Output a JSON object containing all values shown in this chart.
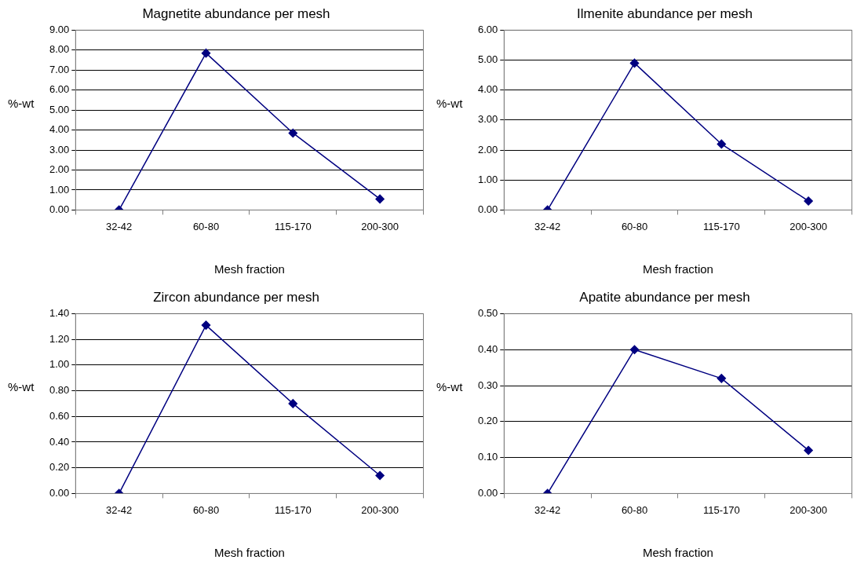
{
  "chart_data": [
    {
      "type": "line",
      "title": "Magnetite abundance per mesh",
      "xlabel": "Mesh fraction",
      "ylabel": "%-wt",
      "categories": [
        "32-42",
        "60-80",
        "115-170",
        "200-300"
      ],
      "series": [
        {
          "color": "#000080",
          "values": [
            0,
            7.85,
            3.85,
            0.55
          ]
        }
      ],
      "ylim": [
        0,
        9
      ],
      "yticks": [
        {
          "value": 0,
          "label": "0.00"
        },
        {
          "value": 1,
          "label": "1.00"
        },
        {
          "value": 2,
          "label": "2.00"
        },
        {
          "value": 3,
          "label": "3.00"
        },
        {
          "value": 4,
          "label": "4.00"
        },
        {
          "value": 5,
          "label": "5.00"
        },
        {
          "value": 6,
          "label": "6.00"
        },
        {
          "value": 7,
          "label": "7.00"
        },
        {
          "value": 8,
          "label": "8.00"
        },
        {
          "value": 9,
          "label": "9.00"
        }
      ],
      "grid": "y",
      "legend": false,
      "marker": "diamond",
      "line_style": "solid"
    },
    {
      "type": "line",
      "title": "Ilmenite abundance per mesh",
      "xlabel": "Mesh fraction",
      "ylabel": "%-wt",
      "categories": [
        "32-42",
        "60-80",
        "115-170",
        "200-300"
      ],
      "series": [
        {
          "color": "#000080",
          "values": [
            0,
            4.9,
            2.2,
            0.3
          ]
        }
      ],
      "ylim": [
        0,
        6
      ],
      "yticks": [
        {
          "value": 0,
          "label": "0.00"
        },
        {
          "value": 1,
          "label": "1.00"
        },
        {
          "value": 2,
          "label": "2.00"
        },
        {
          "value": 3,
          "label": "3.00"
        },
        {
          "value": 4,
          "label": "4.00"
        },
        {
          "value": 5,
          "label": "5.00"
        },
        {
          "value": 6,
          "label": "6.00"
        }
      ],
      "grid": "y",
      "legend": false,
      "marker": "diamond",
      "line_style": "solid"
    },
    {
      "type": "line",
      "title": "Zircon abundance per mesh",
      "xlabel": "Mesh fraction",
      "ylabel": "%-wt",
      "categories": [
        "32-42",
        "60-80",
        "115-170",
        "200-300"
      ],
      "series": [
        {
          "color": "#000080",
          "values": [
            0,
            1.31,
            0.7,
            0.14
          ]
        }
      ],
      "ylim": [
        0,
        1.4
      ],
      "yticks": [
        {
          "value": 0,
          "label": "0.00"
        },
        {
          "value": 0.2,
          "label": "0.20"
        },
        {
          "value": 0.4,
          "label": "0.40"
        },
        {
          "value": 0.6,
          "label": "0.60"
        },
        {
          "value": 0.8,
          "label": "0.80"
        },
        {
          "value": 1,
          "label": "1.00"
        },
        {
          "value": 1.2,
          "label": "1.20"
        },
        {
          "value": 1.4,
          "label": "1.40"
        }
      ],
      "grid": "y",
      "legend": false,
      "marker": "diamond",
      "line_style": "solid"
    },
    {
      "type": "line",
      "title": "Apatite abundance per mesh",
      "xlabel": "Mesh fraction",
      "ylabel": "%-wt",
      "categories": [
        "32-42",
        "60-80",
        "115-170",
        "200-300"
      ],
      "series": [
        {
          "color": "#000080",
          "values": [
            0,
            0.4,
            0.32,
            0.12
          ]
        }
      ],
      "ylim": [
        0,
        0.5
      ],
      "yticks": [
        {
          "value": 0,
          "label": "0.00"
        },
        {
          "value": 0.1,
          "label": "0.10"
        },
        {
          "value": 0.2,
          "label": "0.20"
        },
        {
          "value": 0.3,
          "label": "0.30"
        },
        {
          "value": 0.4,
          "label": "0.40"
        },
        {
          "value": 0.5,
          "label": "0.50"
        }
      ],
      "grid": "y",
      "legend": false,
      "marker": "diamond",
      "line_style": "solid"
    }
  ]
}
